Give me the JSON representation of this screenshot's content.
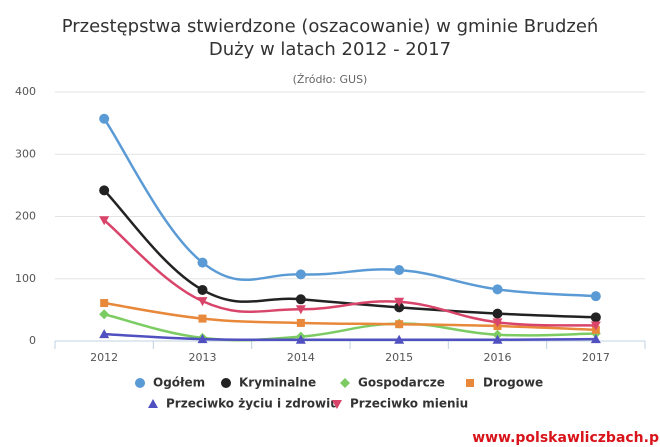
{
  "chart_data": {
    "type": "line",
    "title_lines": [
      "Przestępstwa stwierdzone (oszacowanie) w gminie Brudzeń",
      "Duży w latach 2012 - 2017"
    ],
    "subtitle": "(Źródło: GUS)",
    "watermark": "www.polskawliczbach.p",
    "categories": [
      "2012",
      "2013",
      "2014",
      "2015",
      "2016",
      "2017"
    ],
    "ylim": [
      0,
      400
    ],
    "yticks": [
      0,
      100,
      200,
      300,
      400
    ],
    "grid": true,
    "series": [
      {
        "name": "Ogółem",
        "color": "#5b9bd5",
        "marker": "circle",
        "values": [
          357,
          126,
          107,
          114,
          83,
          72
        ]
      },
      {
        "name": "Kryminalne",
        "color": "#222222",
        "marker": "circle",
        "values": [
          242,
          82,
          67,
          54,
          44,
          38
        ]
      },
      {
        "name": "Gospodarcze",
        "color": "#7ccc63",
        "marker": "diamond",
        "values": [
          43,
          5,
          7,
          28,
          10,
          12
        ]
      },
      {
        "name": "Drogowe",
        "color": "#e8883a",
        "marker": "square",
        "values": [
          61,
          36,
          29,
          27,
          24,
          18
        ]
      },
      {
        "name": "Przeciwko życiu i zdrowiu",
        "color": "#5050c0",
        "marker": "triangle",
        "values": [
          11,
          3,
          2,
          2,
          2,
          3
        ]
      },
      {
        "name": "Przeciwko mieniu",
        "color": "#d9456a",
        "marker": "triangle-down",
        "values": [
          194,
          64,
          51,
          63,
          30,
          25
        ]
      }
    ]
  }
}
